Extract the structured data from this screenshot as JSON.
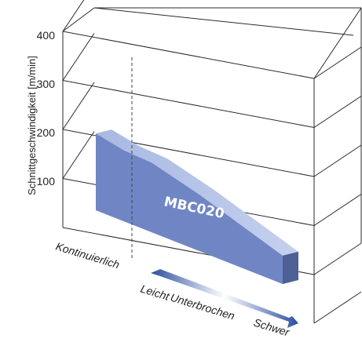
{
  "chart_data": {
    "type": "bar",
    "title": "",
    "ylabel": "Schnittgeschwindigkeit [m/min]",
    "ylim": [
      0,
      400
    ],
    "yticks": [
      100,
      200,
      300,
      400
    ],
    "axis_labels": {
      "continuous": "Kontinuierlich",
      "interrupted_light": "Leicht",
      "interrupted_mid": "Unterbrochen",
      "interrupted_heavy": "Schwer"
    },
    "series": [
      {
        "name": "MBC020",
        "profile_x": [
          0,
          0.15,
          0.3,
          0.55,
          1.0
        ],
        "profile_y": [
          270,
          250,
          245,
          200,
          100
        ],
        "color": "#7086c4"
      }
    ],
    "grid": true,
    "bar_label": "MBC020"
  }
}
